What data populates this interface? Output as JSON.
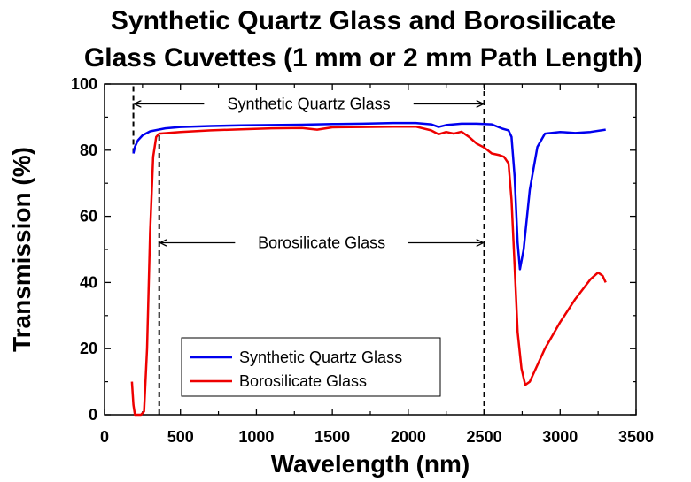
{
  "chart_data": {
    "type": "line",
    "title_lines": [
      "Synthetic Quartz Glass and Borosilicate",
      "Glass Cuvettes (1 mm or 2 mm Path Length)"
    ],
    "xlabel": "Wavelength (nm)",
    "ylabel": "Transmission (%)",
    "xlim": [
      0,
      3500
    ],
    "ylim": [
      0,
      100
    ],
    "x_ticks": [
      0,
      500,
      1000,
      1500,
      2000,
      2500,
      3000,
      3500
    ],
    "y_ticks": [
      0,
      20,
      40,
      60,
      80,
      100
    ],
    "grid": false,
    "legend_position": "bottom-left",
    "series": [
      {
        "name": "Synthetic Quartz Glass",
        "color": "#0000ee",
        "points": [
          [
            190,
            79
          ],
          [
            200,
            81
          ],
          [
            220,
            83
          ],
          [
            250,
            84.5
          ],
          [
            300,
            85.7
          ],
          [
            400,
            86.6
          ],
          [
            500,
            87
          ],
          [
            700,
            87.3
          ],
          [
            900,
            87.5
          ],
          [
            1100,
            87.6
          ],
          [
            1300,
            87.7
          ],
          [
            1500,
            87.9
          ],
          [
            1700,
            88
          ],
          [
            1900,
            88.2
          ],
          [
            2050,
            88.2
          ],
          [
            2150,
            87.8
          ],
          [
            2200,
            87
          ],
          [
            2250,
            87.6
          ],
          [
            2350,
            88
          ],
          [
            2450,
            88
          ],
          [
            2550,
            87.8
          ],
          [
            2620,
            86.5
          ],
          [
            2660,
            86
          ],
          [
            2680,
            84
          ],
          [
            2700,
            72
          ],
          [
            2720,
            52
          ],
          [
            2735,
            44
          ],
          [
            2760,
            50
          ],
          [
            2800,
            68
          ],
          [
            2850,
            81
          ],
          [
            2900,
            85
          ],
          [
            3000,
            85.5
          ],
          [
            3100,
            85.2
          ],
          [
            3200,
            85.5
          ],
          [
            3300,
            86.2
          ]
        ]
      },
      {
        "name": "Borosilicate Glass",
        "color": "#ee0000",
        "points": [
          [
            180,
            10
          ],
          [
            190,
            3
          ],
          [
            200,
            0
          ],
          [
            240,
            0
          ],
          [
            260,
            1
          ],
          [
            280,
            20
          ],
          [
            300,
            55
          ],
          [
            320,
            78
          ],
          [
            340,
            84
          ],
          [
            360,
            85
          ],
          [
            500,
            85.5
          ],
          [
            700,
            86
          ],
          [
            900,
            86.3
          ],
          [
            1100,
            86.6
          ],
          [
            1300,
            86.7
          ],
          [
            1400,
            86.2
          ],
          [
            1500,
            86.9
          ],
          [
            1700,
            87
          ],
          [
            1900,
            87.1
          ],
          [
            2050,
            87.1
          ],
          [
            2150,
            86
          ],
          [
            2200,
            84.8
          ],
          [
            2250,
            85.5
          ],
          [
            2300,
            85
          ],
          [
            2350,
            85.6
          ],
          [
            2400,
            84
          ],
          [
            2450,
            82
          ],
          [
            2500,
            80.8
          ],
          [
            2550,
            79
          ],
          [
            2600,
            78.5
          ],
          [
            2630,
            78
          ],
          [
            2660,
            76
          ],
          [
            2680,
            65
          ],
          [
            2700,
            45
          ],
          [
            2720,
            25
          ],
          [
            2745,
            14
          ],
          [
            2770,
            9
          ],
          [
            2800,
            10
          ],
          [
            2850,
            15
          ],
          [
            2900,
            20
          ],
          [
            3000,
            28
          ],
          [
            3100,
            35
          ],
          [
            3200,
            41
          ],
          [
            3250,
            43
          ],
          [
            3280,
            42
          ],
          [
            3300,
            40
          ]
        ]
      }
    ],
    "annotations": [
      {
        "label": "Synthetic Quartz Glass",
        "y": 94,
        "x_start": 190,
        "x_end": 2500
      },
      {
        "label": "Borosilicate Glass",
        "y": 52,
        "x_start": 360,
        "x_end": 2500
      }
    ],
    "dashed_verticals": [
      {
        "x": 190,
        "y_from": 79,
        "y_to": 100
      },
      {
        "x": 360,
        "y_from": 0,
        "y_to": 85
      },
      {
        "x": 2500,
        "y_from": 0,
        "y_to": 100
      }
    ]
  }
}
